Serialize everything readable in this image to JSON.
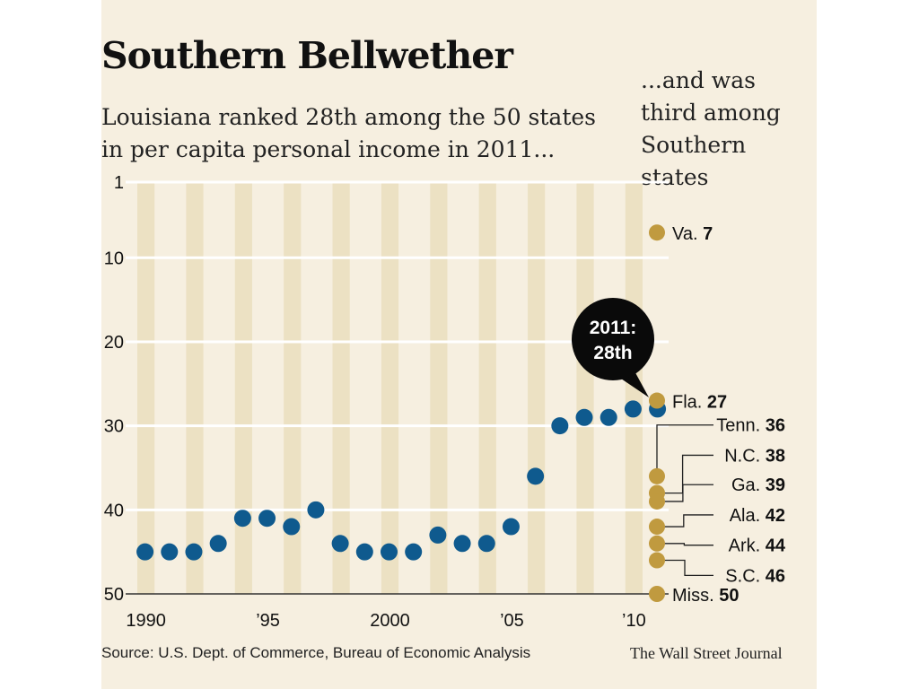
{
  "colors": {
    "background": "#f6efe0",
    "stripe": "#ece1c3",
    "louisiana_dot": "#0f5a8e",
    "southern_dot": "#c09a3f",
    "gridline": "#ffffff",
    "callout": "#0a0a0a"
  },
  "header": {
    "title": "Southern Bellwether",
    "subtitle": "Louisiana ranked 28th among the 50 states\nin per capita personal income in 2011...",
    "subtitle_right": "...and was\nthird among\nSouthern states"
  },
  "footer": {
    "source": "Source: U.S. Dept. of Commerce, Bureau of Economic Analysis",
    "credit": "The Wall Street Journal"
  },
  "chart_data": {
    "type": "scatter",
    "y_axis": {
      "reversed": true,
      "ylim": [
        1,
        50
      ],
      "ticks": [
        1,
        10,
        20,
        30,
        40,
        50
      ]
    },
    "x_axis": {
      "xlim": [
        1990,
        2011
      ],
      "ticks": [
        1990,
        1995,
        2000,
        2005,
        2010
      ],
      "tick_labels": [
        "1990",
        "’95",
        "2000",
        "’05",
        "’10"
      ]
    },
    "series": [
      {
        "x": [
          1990,
          1991,
          1992,
          1993,
          1994,
          1995,
          1996,
          1997,
          1998,
          1999,
          2000,
          2001,
          2002,
          2003,
          2004,
          2005,
          2006,
          2007,
          2008,
          2009,
          2010,
          2011
        ],
        "y": [
          45,
          45,
          45,
          44,
          41,
          41,
          42,
          40,
          44,
          45,
          45,
          45,
          43,
          44,
          44,
          42,
          36,
          30,
          29,
          29,
          28,
          28
        ]
      }
    ],
    "callout": {
      "line1": "2011:",
      "line2": "28th"
    },
    "southern_states": [
      {
        "state": "Va.",
        "rank": 7
      },
      {
        "state": "Fla.",
        "rank": 27
      },
      {
        "state": "Tenn.",
        "rank": 36
      },
      {
        "state": "N.C.",
        "rank": 38
      },
      {
        "state": "Ga.",
        "rank": 39
      },
      {
        "state": "Ala.",
        "rank": 42
      },
      {
        "state": "Ark.",
        "rank": 44
      },
      {
        "state": "S.C.",
        "rank": 46
      },
      {
        "state": "Miss.",
        "rank": 50
      }
    ]
  }
}
